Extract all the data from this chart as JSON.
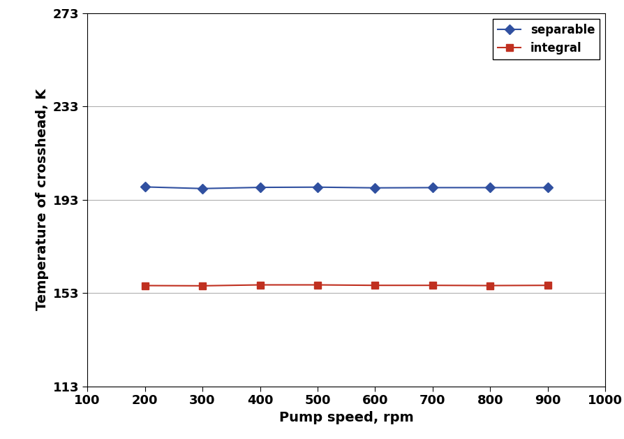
{
  "x": [
    200,
    300,
    400,
    500,
    600,
    700,
    800,
    900
  ],
  "separable_y": [
    198.5,
    197.8,
    198.3,
    198.4,
    198.1,
    198.2,
    198.2,
    198.2
  ],
  "integral_y": [
    156.2,
    156.1,
    156.5,
    156.5,
    156.3,
    156.3,
    156.2,
    156.3
  ],
  "separable_color": "#3050A0",
  "integral_color": "#C03020",
  "xlabel": "Pump speed, rpm",
  "ylabel": "Temperature of crosshead, K",
  "xlim": [
    100,
    1000
  ],
  "ylim": [
    113,
    273
  ],
  "yticks": [
    113,
    153,
    193,
    233,
    273
  ],
  "xticks": [
    100,
    200,
    300,
    400,
    500,
    600,
    700,
    800,
    900,
    1000
  ],
  "legend_separable": "separable",
  "legend_integral": "integral",
  "background_color": "#ffffff",
  "grid_color": "#b0b0b0",
  "xlabel_fontsize": 14,
  "ylabel_fontsize": 14,
  "tick_fontsize": 13,
  "legend_fontsize": 12,
  "line_width": 1.5,
  "marker_size": 7
}
